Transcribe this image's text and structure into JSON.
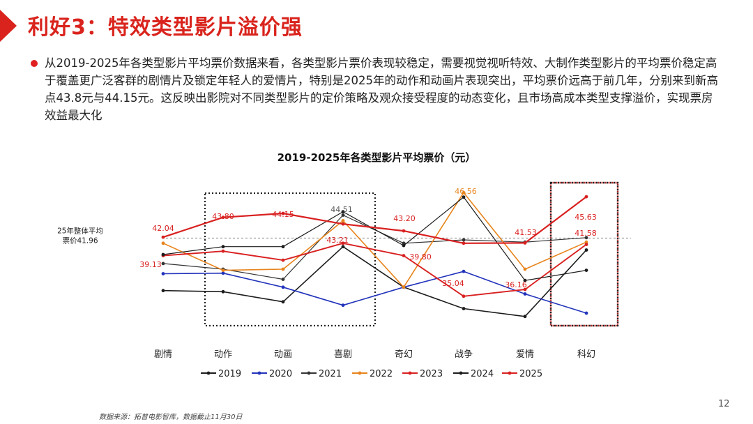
{
  "header": {
    "title": "利好3：特效类型影片溢价强"
  },
  "body": {
    "paragraph": "从2019-2025年各类型影片平均票价数据来看，各类型影片票价表现较稳定，需要视觉视听特效、大制作类型影片的平均票价稳定高于覆盖更广泛客群的剧情片及锁定年轻人的爱情片，特别是2025年的动作和动画片表现突出，平均票价远高于前几年，分别来到新高点43.8元与44.15元。这反映出影院对不同类型影片的定价策略及观众接受程度的动态变化，且市场高成本类型支撑溢价，实现票房效益最大化"
  },
  "footer": {
    "source": "数据来源：拓普电影智库，数据截止11月30日",
    "page_number": "12"
  },
  "chart_data": {
    "type": "line",
    "title": "2019-2025年各类型影片平均票价（元）",
    "categories": [
      "剧情",
      "动作",
      "动画",
      "喜剧",
      "奇幻",
      "战争",
      "爱情",
      "科幻"
    ],
    "ylim": [
      34,
      47
    ],
    "reference_line": {
      "label_line1": "25年整体平均",
      "label_line2": "票价41.96",
      "value": 41.96
    },
    "series": [
      {
        "name": "2019",
        "color": "#1c1c1c",
        "width": 1.6,
        "values": [
          37.3,
          37.2,
          36.3,
          41.2,
          37.6,
          35.7,
          35.0,
          40.9
        ]
      },
      {
        "name": "2020",
        "color": "#2233bb",
        "width": 1.6,
        "values": [
          38.8,
          38.85,
          37.6,
          36.0,
          37.6,
          39.0,
          37.0,
          35.3
        ]
      },
      {
        "name": "2021",
        "color": "#333333",
        "width": 1.2,
        "values": [
          39.7,
          39.2,
          38.3,
          44.0,
          41.5,
          41.8,
          41.6,
          42.0
        ]
      },
      {
        "name": "2022",
        "color": "#e8841c",
        "width": 1.6,
        "values": [
          41.5,
          39.1,
          39.2,
          43.5,
          37.6,
          46.0,
          39.2,
          41.6
        ]
      },
      {
        "name": "2023",
        "color": "#d92020",
        "width": 1.9,
        "values": [
          40.4,
          40.8,
          40.0,
          41.5,
          40.4,
          36.8,
          37.4,
          41.4
        ]
      },
      {
        "name": "2024",
        "color": "#1c1c1c",
        "width": 1.2,
        "values": [
          40.5,
          41.2,
          41.2,
          44.3,
          41.3,
          45.6,
          38.2,
          39.1
        ]
      },
      {
        "name": "2025",
        "color": "#d92020",
        "width": 2.2,
        "values": [
          42.04,
          43.8,
          44.15,
          43.21,
          42.6,
          41.5,
          41.53,
          45.63
        ]
      }
    ],
    "data_labels": [
      {
        "text": "42.04",
        "color": "#d92020"
      },
      {
        "text": "39.13",
        "color": "#d92020"
      },
      {
        "text": "43.80",
        "color": "#d92020"
      },
      {
        "text": "44.15",
        "color": "#d92020"
      },
      {
        "text": "44.51",
        "color": "#555555"
      },
      {
        "text": "43.21",
        "color": "#d92020"
      },
      {
        "text": "43.20",
        "color": "#d92020"
      },
      {
        "text": "39.80",
        "color": "#d92020"
      },
      {
        "text": "46.56",
        "color": "#e8841c"
      },
      {
        "text": "35.04",
        "color": "#d92020"
      },
      {
        "text": "36.16",
        "color": "#d92020"
      },
      {
        "text": "41.53",
        "color": "#d92020"
      },
      {
        "text": "45.63",
        "color": "#d92020"
      },
      {
        "text": "41.58",
        "color": "#d92020"
      }
    ]
  }
}
